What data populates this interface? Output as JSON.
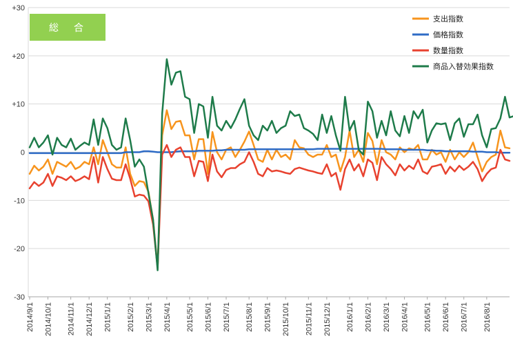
{
  "badge": {
    "label": "総　合",
    "color": "#92D050"
  },
  "chart_data": {
    "type": "line",
    "title": "総　合",
    "ylim": [
      -30,
      30
    ],
    "yticks": [
      {
        "value": 30,
        "label": "+30"
      },
      {
        "value": 20,
        "label": "+20"
      },
      {
        "value": 10,
        "label": "+10"
      },
      {
        "value": 0,
        "label": "0"
      },
      {
        "value": -10,
        "label": "-10"
      },
      {
        "value": -20,
        "label": "-20"
      },
      {
        "value": -30,
        "label": "-30"
      }
    ],
    "grid": true,
    "legend_position": "top-right",
    "x_period": "weekly, 2014/9/1 – 2016/8/29",
    "x_ticks": [
      {
        "index": 0,
        "label": "2014/9/1"
      },
      {
        "index": 4,
        "label": "2014/10/1"
      },
      {
        "index": 9,
        "label": "2014/11/1"
      },
      {
        "index": 13,
        "label": "2014/12/1"
      },
      {
        "index": 17,
        "label": "2015/1/1"
      },
      {
        "index": 22,
        "label": "2015/2/1"
      },
      {
        "index": 26,
        "label": "2015/3/1"
      },
      {
        "index": 30,
        "label": "2015/4/1"
      },
      {
        "index": 35,
        "label": "2015/5/1"
      },
      {
        "index": 39,
        "label": "2015/6/1"
      },
      {
        "index": 43,
        "label": "2015/7/1"
      },
      {
        "index": 48,
        "label": "2015/8/1"
      },
      {
        "index": 52,
        "label": "2015/9/1"
      },
      {
        "index": 56,
        "label": "2015/10/1"
      },
      {
        "index": 61,
        "label": "2015/11/1"
      },
      {
        "index": 65,
        "label": "2015/12/1"
      },
      {
        "index": 70,
        "label": "2016/1/1"
      },
      {
        "index": 74,
        "label": "2016/2/1"
      },
      {
        "index": 78,
        "label": "2016/3/1"
      },
      {
        "index": 82,
        "label": "2016/4/1"
      },
      {
        "index": 87,
        "label": "2016/5/1"
      },
      {
        "index": 91,
        "label": "2016/6/1"
      },
      {
        "index": 95,
        "label": "2016/7/1"
      },
      {
        "index": 100,
        "label": "2016/8/1"
      }
    ],
    "series": [
      {
        "name": "支出指数",
        "color": "#F7941D",
        "values": [
          -4.5,
          -2.8,
          -3.8,
          -3,
          -1.5,
          -4.5,
          -2,
          -2.5,
          -3,
          -2,
          -3.5,
          -3,
          -2,
          -2.5,
          1,
          -2.5,
          2.5,
          0,
          -2.5,
          -3.2,
          -3.2,
          1,
          -4.5,
          -7,
          -6,
          -6.2,
          -8.2,
          -14,
          -24,
          3.5,
          8.7,
          4.8,
          6.3,
          6.5,
          3.5,
          3.5,
          -1.5,
          2.7,
          2.7,
          -4.5,
          4.2,
          0,
          -1.5,
          0.5,
          1,
          -1,
          0.5,
          2.2,
          4.3,
          1.5,
          -1.5,
          -2,
          0.5,
          -1.5,
          0.5,
          -1,
          -0.5,
          -1.5,
          2.5,
          1,
          0.8,
          -0.5,
          -1,
          -0.5,
          -0.5,
          1.5,
          -1,
          -0.5,
          -4,
          -1,
          4.5,
          -1,
          0.5,
          -2,
          4,
          2.3,
          -2.5,
          2.5,
          0,
          -0.5,
          -1.5,
          1,
          0,
          0.8,
          0.5,
          1.5,
          -1.5,
          -1.5,
          0.5,
          -0.5,
          0,
          -2,
          0.5,
          -1.5,
          0,
          -1,
          0,
          2,
          -1,
          -4,
          -2,
          -1,
          -0.5,
          4.5,
          1,
          0.8
        ]
      },
      {
        "name": "価格指数",
        "color": "#2E6BC6",
        "values": [
          -0.2,
          -0.2,
          -0.2,
          -0.2,
          -0.2,
          -0.2,
          -0.2,
          -0.2,
          -0.2,
          -0.2,
          -0.2,
          -0.2,
          -0.2,
          -0.2,
          -0.2,
          -0.2,
          -0.2,
          -0.2,
          -0.2,
          -0.2,
          -0.2,
          0,
          0,
          0,
          0,
          0.2,
          0.2,
          0.1,
          0,
          0,
          0,
          0,
          0.1,
          0.2,
          0.2,
          0.2,
          0.2,
          0.3,
          0.3,
          0.3,
          0.3,
          0.4,
          0.4,
          0.5,
          0.5,
          0.5,
          0.5,
          0.5,
          0.6,
          0.6,
          0.6,
          0.6,
          0.6,
          0.6,
          0.6,
          0.6,
          0.6,
          0.6,
          0.6,
          0.6,
          0.6,
          0.6,
          0.6,
          0.7,
          0.7,
          0.7,
          0.7,
          0.7,
          0.7,
          0.7,
          0.7,
          0.7,
          0.7,
          0.7,
          0.7,
          0.7,
          0.7,
          0.7,
          0.6,
          0.6,
          0.6,
          0.6,
          0.5,
          0.5,
          0.5,
          0.5,
          0.5,
          0.4,
          0.4,
          0.3,
          0.3,
          0.2,
          0.2,
          0.2,
          0.2,
          0.2,
          0.2,
          0.1,
          0.1,
          0.1,
          0,
          0,
          0,
          -0.1,
          -0.1,
          -0.1
        ]
      },
      {
        "name": "数量指数",
        "color": "#E8422F",
        "values": [
          -7.5,
          -6.2,
          -7,
          -6.3,
          -4.5,
          -7,
          -5,
          -5.3,
          -5.8,
          -5,
          -6,
          -5.6,
          -5,
          -5.6,
          -1,
          -6.3,
          -1,
          -3.5,
          -5.5,
          -5.8,
          -5.8,
          -2.5,
          -5.5,
          -9.2,
          -8.8,
          -9,
          -10.2,
          -15,
          -24,
          -0.5,
          1.5,
          -1,
          0.5,
          1,
          -1,
          -1,
          -5,
          -1.8,
          -2,
          -6,
          -0.5,
          -4,
          -5.2,
          -3.7,
          -3.3,
          -3.3,
          -2.5,
          -2,
          0,
          -2,
          -4.5,
          -5,
          -3.3,
          -4,
          -3.8,
          -4,
          -4.3,
          -4.5,
          -3.5,
          -3.2,
          -3.5,
          -3.8,
          -4,
          -4.3,
          -4.5,
          -2.5,
          -5,
          -4.3,
          -7.8,
          -3.5,
          -1.5,
          -3.8,
          -2.5,
          -5,
          -1.5,
          -2.2,
          -5.8,
          -1,
          -2.5,
          -3.5,
          -4.8,
          -2.5,
          -3.8,
          -2.8,
          -3.5,
          -1.5,
          -4,
          -4.5,
          -3,
          -2.8,
          -2.5,
          -4.5,
          -3,
          -4,
          -2.8,
          -3.7,
          -3,
          -2,
          -3.5,
          -6,
          -4.5,
          -3.5,
          -3.2,
          0.5,
          -1.5,
          -1.8
        ]
      },
      {
        "name": "商品入替効果指数",
        "color": "#1E7B4A",
        "values": [
          1,
          3,
          1,
          2,
          3.5,
          -0.5,
          3,
          1.5,
          1,
          2.8,
          0.5,
          1.3,
          2,
          1.5,
          6.8,
          1.5,
          7,
          5,
          1.5,
          0.5,
          1,
          7,
          2.5,
          -3,
          -1.5,
          -3,
          -8.5,
          -14,
          -24.5,
          8,
          19.3,
          14,
          16.5,
          16.8,
          11.5,
          11,
          4,
          10,
          9.5,
          3,
          11.5,
          5.5,
          4.5,
          6.5,
          5,
          6.8,
          9,
          11,
          5.5,
          3.5,
          2.5,
          5.5,
          4.5,
          6.5,
          4,
          5,
          5.5,
          8.5,
          7.5,
          7.8,
          5,
          4.5,
          3.8,
          2.5,
          7.8,
          4,
          7.5,
          3.5,
          0.3,
          11.5,
          4.5,
          6.5,
          0.5,
          -0.5,
          10.5,
          8.5,
          3,
          6.5,
          3.5,
          8.5,
          4.5,
          3.3,
          7.5,
          4,
          8.5,
          7,
          8.8,
          2,
          4.5,
          6,
          5.8,
          6,
          2.5,
          6,
          7,
          3.2,
          5.8,
          5.8,
          7.8,
          3.5,
          1,
          4.8,
          5,
          7,
          11.5,
          7.2,
          7.5
        ]
      }
    ]
  }
}
